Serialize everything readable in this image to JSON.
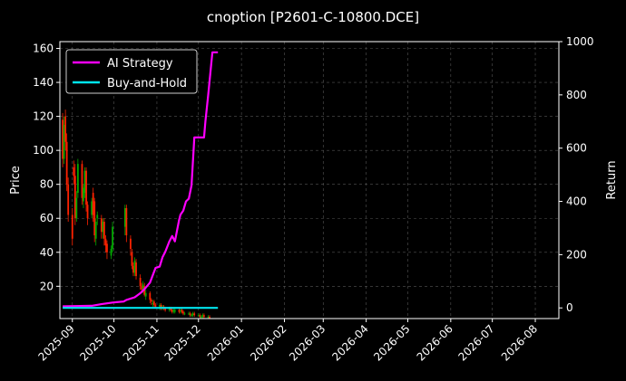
{
  "chart_data": {
    "type": "line",
    "title": "cnoption [P2601-C-10800.DCE]",
    "ylabel_left": "Price",
    "ylabel_right": "Return",
    "x_ticks": [
      "2025-09",
      "2025-10",
      "2025-11",
      "2025-12",
      "2026-01",
      "2026-02",
      "2026-03",
      "2026-04",
      "2026-05",
      "2026-06",
      "2026-07",
      "2026-08"
    ],
    "x_range": [
      "2025-08-23",
      "2026-08-18"
    ],
    "y_left_ticks": [
      20,
      40,
      60,
      80,
      100,
      120,
      140,
      160
    ],
    "y_left_range": [
      1,
      164
    ],
    "y_right_ticks": [
      0,
      200,
      400,
      600,
      800,
      1000
    ],
    "y_right_range": [
      -40,
      1000
    ],
    "grid": true,
    "legend_position": "top-left",
    "colors": {
      "background": "#000000",
      "ai_strategy": "#ff00ff",
      "buy_and_hold": "#00e5ee",
      "candle_up": "#00aa00",
      "candle_down": "#ff2200",
      "grid": "#555555",
      "text": "#ffffff"
    },
    "series": [
      {
        "name": "AI Strategy",
        "axis": "right",
        "x": [
          "2025-08-25",
          "2025-09-15",
          "2025-09-22",
          "2025-09-30",
          "2025-10-08",
          "2025-10-10",
          "2025-10-16",
          "2025-10-20",
          "2025-10-23",
          "2025-10-27",
          "2025-10-31",
          "2025-11-03",
          "2025-11-05",
          "2025-11-07",
          "2025-11-10",
          "2025-11-12",
          "2025-11-14",
          "2025-11-17",
          "2025-11-18",
          "2025-11-20",
          "2025-11-22",
          "2025-11-24",
          "2025-11-26",
          "2025-11-28",
          "2025-12-01",
          "2025-12-03",
          "2025-12-05",
          "2025-12-06",
          "2025-12-08",
          "2025-12-11",
          "2025-12-12",
          "2025-12-15"
        ],
        "y": [
          6,
          8,
          14,
          20,
          24,
          30,
          40,
          55,
          70,
          95,
          150,
          155,
          190,
          210,
          250,
          270,
          250,
          330,
          350,
          365,
          400,
          410,
          460,
          640,
          640,
          640,
          640,
          700,
          800,
          960,
          960,
          960
        ]
      },
      {
        "name": "Buy-and-Hold",
        "axis": "right",
        "x": [
          "2025-08-25",
          "2025-12-15"
        ],
        "y": [
          0,
          0
        ]
      }
    ],
    "candles": {
      "axis": "left",
      "x": [
        "2025-08-25",
        "2025-08-26",
        "2025-08-27",
        "2025-08-28",
        "2025-08-29",
        "2025-09-01",
        "2025-09-02",
        "2025-09-03",
        "2025-09-04",
        "2025-09-05",
        "2025-09-08",
        "2025-09-09",
        "2025-09-10",
        "2025-09-11",
        "2025-09-12",
        "2025-09-15",
        "2025-09-16",
        "2025-09-17",
        "2025-09-18",
        "2025-09-19",
        "2025-09-22",
        "2025-09-23",
        "2025-09-24",
        "2025-09-25",
        "2025-09-26",
        "2025-09-29",
        "2025-09-30",
        "2025-10-09",
        "2025-10-10",
        "2025-10-13",
        "2025-10-14",
        "2025-10-15",
        "2025-10-16",
        "2025-10-17",
        "2025-10-20",
        "2025-10-21",
        "2025-10-22",
        "2025-10-23",
        "2025-10-24",
        "2025-10-27",
        "2025-10-28",
        "2025-10-29",
        "2025-10-30",
        "2025-10-31",
        "2025-11-03",
        "2025-11-04",
        "2025-11-05",
        "2025-11-06",
        "2025-11-07",
        "2025-11-10",
        "2025-11-11",
        "2025-11-12",
        "2025-11-13",
        "2025-11-14",
        "2025-11-17",
        "2025-11-18",
        "2025-11-19",
        "2025-11-20",
        "2025-11-21",
        "2025-11-24",
        "2025-11-25",
        "2025-11-26",
        "2025-11-27",
        "2025-11-28",
        "2025-12-01",
        "2025-12-02",
        "2025-12-03",
        "2025-12-04",
        "2025-12-05",
        "2025-12-08",
        "2025-12-09"
      ],
      "open": [
        118,
        95,
        120,
        105,
        80,
        62,
        90,
        85,
        60,
        75,
        92,
        70,
        75,
        88,
        68,
        62,
        75,
        70,
        48,
        60,
        60,
        52,
        58,
        48,
        45,
        38,
        42,
        55,
        66,
        48,
        40,
        32,
        28,
        34,
        25,
        20,
        18,
        20,
        14,
        16,
        12,
        10,
        11,
        9,
        8,
        9,
        7,
        8,
        7,
        6,
        7,
        6,
        5,
        5,
        6,
        5,
        6,
        5,
        4,
        4,
        4,
        3,
        3,
        4,
        3,
        3,
        2,
        2,
        3,
        2,
        2
      ],
      "close": [
        95,
        115,
        105,
        80,
        62,
        48,
        85,
        60,
        72,
        92,
        72,
        78,
        88,
        68,
        60,
        70,
        62,
        50,
        58,
        62,
        52,
        58,
        48,
        44,
        40,
        42,
        55,
        66,
        50,
        42,
        32,
        28,
        35,
        26,
        20,
        18,
        21,
        15,
        16,
        12,
        11,
        10,
        9,
        8,
        9,
        7,
        8,
        7,
        6,
        7,
        6,
        5,
        6,
        6,
        5,
        6,
        5,
        4,
        4,
        4,
        3,
        3,
        4,
        3,
        3,
        2,
        2,
        3,
        2,
        2,
        1
      ],
      "high": [
        122,
        120,
        124,
        110,
        84,
        66,
        94,
        92,
        76,
        95,
        94,
        80,
        90,
        90,
        70,
        72,
        78,
        72,
        60,
        64,
        62,
        60,
        60,
        50,
        47,
        44,
        58,
        68,
        68,
        50,
        42,
        34,
        37,
        36,
        27,
        22,
        23,
        22,
        18,
        17,
        13,
        12,
        12,
        10,
        10,
        10,
        9,
        9,
        8,
        8,
        8,
        7,
        7,
        7,
        7,
        7,
        7,
        6,
        5,
        5,
        5,
        4,
        5,
        5,
        4,
        4,
        3,
        4,
        4,
        3,
        3
      ],
      "low": [
        90,
        92,
        100,
        76,
        58,
        44,
        80,
        56,
        58,
        72,
        68,
        66,
        72,
        64,
        56,
        60,
        58,
        46,
        44,
        56,
        48,
        48,
        44,
        40,
        36,
        36,
        40,
        50,
        46,
        38,
        30,
        26,
        26,
        24,
        18,
        16,
        16,
        14,
        12,
        10,
        9,
        8,
        8,
        7,
        6,
        6,
        6,
        6,
        5,
        5,
        5,
        4,
        4,
        4,
        4,
        4,
        4,
        3,
        3,
        3,
        2,
        2,
        2,
        2,
        2,
        1,
        1,
        1,
        1,
        1,
        1
      ]
    }
  }
}
